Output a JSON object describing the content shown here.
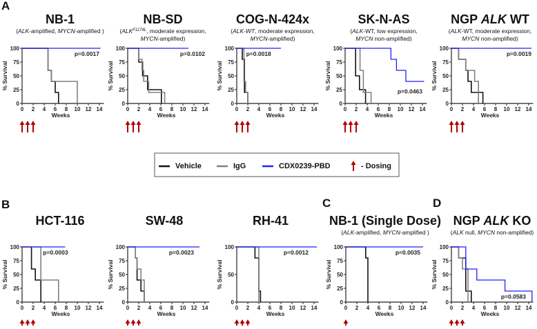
{
  "colors": {
    "vehicle": "#111111",
    "igg": "#808080",
    "cdx": "#1f1fff",
    "dosing": "#b00000"
  },
  "axis": {
    "y_label": "% Survival",
    "x_label": "Weeks"
  },
  "legend": {
    "items": [
      {
        "label": "Vehicle",
        "series": "vehicle"
      },
      {
        "label": "IgG",
        "series": "igg"
      },
      {
        "label": "CDX0239-PBD",
        "series": "cdx"
      },
      {
        "label": "- Dosing",
        "series": "dosing"
      }
    ]
  },
  "panel_letters": [
    "A",
    "B",
    "C",
    "D"
  ],
  "chart_data": [
    {
      "type": "line",
      "id": "nb1",
      "title": [
        {
          "t": "NB-1"
        }
      ],
      "subtitle": [
        [
          {
            "t": "("
          },
          {
            "t": "ALK",
            "i": true
          },
          {
            "t": "-amplified, "
          },
          {
            "t": "MYCN",
            "i": true
          },
          {
            "t": "-amplified )"
          }
        ]
      ],
      "p_value": "p=0.0017",
      "xlim": [
        0,
        14
      ],
      "ylim": [
        0,
        100
      ],
      "xticks": [
        0,
        2,
        4,
        6,
        8,
        10,
        12,
        14
      ],
      "yticks": [
        0,
        25,
        50,
        75,
        100
      ],
      "dosing_weeks": [
        0,
        1,
        2
      ],
      "series": [
        {
          "name": "Vehicle",
          "points": [
            [
              0,
              100
            ],
            [
              4.7,
              60
            ],
            [
              5.3,
              40
            ],
            [
              6,
              20
            ],
            [
              6.6,
              0
            ],
            [
              6.6,
              0
            ]
          ]
        },
        {
          "name": "IgG",
          "points": [
            [
              0,
              100
            ],
            [
              4.7,
              60
            ],
            [
              5.3,
              40
            ],
            [
              10,
              0
            ],
            [
              10,
              0
            ]
          ]
        },
        {
          "name": "CDX0239-PBD",
          "points": [
            [
              0,
              100
            ],
            [
              14.2,
              100
            ]
          ]
        }
      ]
    },
    {
      "type": "line",
      "id": "nbsd",
      "title": [
        {
          "t": "NB-SD"
        }
      ],
      "subtitle": [
        [
          {
            "t": "("
          },
          {
            "t": "ALK",
            "i": true
          },
          {
            "t": "F1174L",
            "i": true,
            "sup": true
          },
          {
            "t": ", moderate expression,"
          }
        ],
        [
          {
            "t": "MYCN",
            "i": true
          },
          {
            "t": "-amplified)"
          }
        ]
      ],
      "p_value": "p=0.0102",
      "xlim": [
        0,
        14
      ],
      "ylim": [
        0,
        100
      ],
      "xticks": [
        0,
        2,
        4,
        6,
        8,
        10,
        12,
        14
      ],
      "yticks": [
        0,
        25,
        50,
        75,
        100
      ],
      "dosing_weeks": [
        0,
        1,
        2
      ],
      "series": [
        {
          "name": "Vehicle",
          "points": [
            [
              0,
              100
            ],
            [
              2,
              75
            ],
            [
              2.7,
              50
            ],
            [
              3.6,
              25
            ],
            [
              6.1,
              0
            ],
            [
              6.1,
              0
            ]
          ]
        },
        {
          "name": "IgG",
          "points": [
            [
              0,
              100
            ],
            [
              2,
              80
            ],
            [
              2.6,
              60
            ],
            [
              2.9,
              40
            ],
            [
              3.8,
              20
            ],
            [
              6.7,
              0
            ],
            [
              6.7,
              0
            ]
          ]
        },
        {
          "name": "CDX0239-PBD",
          "points": [
            [
              0,
              100
            ],
            [
              11,
              100
            ]
          ]
        }
      ]
    },
    {
      "type": "line",
      "id": "cog",
      "title": [
        {
          "t": "COG-N-424x"
        }
      ],
      "subtitle": [
        [
          {
            "t": "("
          },
          {
            "t": "ALK",
            "i": true
          },
          {
            "t": "-WT",
            "i": true
          },
          {
            "t": ", moderate expression,"
          }
        ],
        [
          {
            "t": "MYCN",
            "i": true
          },
          {
            "t": "-amplified)"
          }
        ]
      ],
      "p_value": "p=0.0018",
      "xlim": [
        0,
        14
      ],
      "ylim": [
        0,
        100
      ],
      "xticks": [
        0,
        2,
        4,
        6,
        8,
        10,
        12,
        14
      ],
      "yticks": [
        0,
        25,
        50,
        75,
        100
      ],
      "dosing_weeks": [
        0,
        1,
        2
      ],
      "series": [
        {
          "name": "Vehicle",
          "points": [
            [
              0,
              100
            ],
            [
              1,
              80
            ],
            [
              1.4,
              20
            ],
            [
              2,
              0
            ],
            [
              2,
              0
            ]
          ]
        },
        {
          "name": "IgG",
          "points": [
            [
              0,
              100
            ],
            [
              1.3,
              40
            ],
            [
              1.6,
              20
            ],
            [
              2,
              0
            ],
            [
              2,
              0
            ]
          ]
        },
        {
          "name": "CDX0239-PBD",
          "points": [
            [
              0,
              100
            ],
            [
              8,
              100
            ]
          ]
        }
      ]
    },
    {
      "type": "line",
      "id": "sknas",
      "title": [
        {
          "t": "SK-N-AS"
        }
      ],
      "subtitle": [
        [
          {
            "t": "("
          },
          {
            "t": "ALK",
            "i": true
          },
          {
            "t": "-WT, low expression,"
          }
        ],
        [
          {
            "t": "MYCN",
            "i": true
          },
          {
            "t": " non-amplified)"
          }
        ]
      ],
      "p_value": "p=0.0463",
      "xlim": [
        0,
        14
      ],
      "ylim": [
        0,
        100
      ],
      "xticks": [
        0,
        2,
        4,
        6,
        8,
        10,
        12,
        14
      ],
      "yticks": [
        0,
        25,
        50,
        75,
        100
      ],
      "dosing_weeks": [
        0,
        1,
        2
      ],
      "series": [
        {
          "name": "Vehicle",
          "points": [
            [
              0,
              100
            ],
            [
              1.9,
              50
            ],
            [
              2.6,
              25
            ],
            [
              3.7,
              0
            ],
            [
              3.7,
              0
            ]
          ]
        },
        {
          "name": "IgG",
          "points": [
            [
              0,
              100
            ],
            [
              2.7,
              60
            ],
            [
              3.3,
              20
            ],
            [
              4.7,
              0
            ],
            [
              4.7,
              0
            ]
          ]
        },
        {
          "name": "CDX0239-PBD",
          "points": [
            [
              0,
              100
            ],
            [
              8.3,
              80
            ],
            [
              9.3,
              60
            ],
            [
              11,
              40
            ],
            [
              14.3,
              40
            ]
          ]
        }
      ]
    },
    {
      "type": "line",
      "id": "ngpwt",
      "title": [
        {
          "t": "NGP "
        },
        {
          "t": "ALK",
          "i": true
        },
        {
          "t": " WT"
        }
      ],
      "subtitle": [
        [
          {
            "t": "("
          },
          {
            "t": "ALK",
            "i": true
          },
          {
            "t": "-WT, moderate expression,"
          }
        ],
        [
          {
            "t": "MYCN",
            "i": true
          },
          {
            "t": " non-amplified)"
          }
        ]
      ],
      "p_value": "p=0.0019",
      "xlim": [
        0,
        14
      ],
      "ylim": [
        0,
        100
      ],
      "xticks": [
        0,
        2,
        4,
        6,
        8,
        10,
        12,
        14
      ],
      "yticks": [
        0,
        25,
        50,
        75,
        100
      ],
      "dosing_weeks": [
        0,
        1,
        2
      ],
      "series": [
        {
          "name": "Vehicle",
          "points": [
            [
              0,
              100
            ],
            [
              1.3,
              80
            ],
            [
              2.6,
              60
            ],
            [
              3,
              40
            ],
            [
              3.6,
              20
            ],
            [
              5.7,
              0
            ],
            [
              5.7,
              0
            ]
          ]
        },
        {
          "name": "IgG",
          "points": [
            [
              0,
              100
            ],
            [
              1.3,
              80
            ],
            [
              2.6,
              60
            ],
            [
              4.2,
              40
            ],
            [
              4.9,
              0
            ],
            [
              4.9,
              0
            ]
          ]
        },
        {
          "name": "CDX0239-PBD",
          "points": [
            [
              0,
              100
            ],
            [
              14.5,
              100
            ]
          ]
        }
      ]
    },
    {
      "type": "line",
      "id": "hct116",
      "title": [
        {
          "t": "HCT-116"
        }
      ],
      "subtitle": [],
      "p_value": "p=0.0003",
      "xlim": [
        0,
        14
      ],
      "ylim": [
        0,
        100
      ],
      "xticks": [
        0,
        2,
        4,
        6,
        8,
        10,
        12,
        14
      ],
      "yticks": [
        0,
        25,
        50,
        75,
        100
      ],
      "dosing_weeks": [
        0,
        1,
        2
      ],
      "series": [
        {
          "name": "Vehicle",
          "points": [
            [
              0,
              100
            ],
            [
              1.7,
              60
            ],
            [
              2.4,
              40
            ],
            [
              3.4,
              0
            ],
            [
              3.4,
              0
            ]
          ]
        },
        {
          "name": "IgG",
          "points": [
            [
              0,
              100
            ],
            [
              3.4,
              40
            ],
            [
              6.6,
              0
            ],
            [
              6.6,
              0
            ]
          ]
        },
        {
          "name": "CDX0239-PBD",
          "points": [
            [
              0,
              100
            ],
            [
              7.8,
              100
            ]
          ]
        }
      ]
    },
    {
      "type": "line",
      "id": "sw48",
      "title": [
        {
          "t": "SW-48"
        }
      ],
      "subtitle": [],
      "p_value": "p=0.0023",
      "xlim": [
        0,
        14
      ],
      "ylim": [
        0,
        100
      ],
      "xticks": [
        0,
        2,
        4,
        6,
        8,
        10,
        12,
        14
      ],
      "yticks": [
        0,
        25,
        50,
        75,
        100
      ],
      "dosing_weeks": [
        0,
        1,
        2
      ],
      "series": [
        {
          "name": "Vehicle",
          "points": [
            [
              0,
              100
            ],
            [
              1.4,
              80
            ],
            [
              1.7,
              40
            ],
            [
              2.4,
              20
            ],
            [
              3,
              0
            ],
            [
              3,
              0
            ]
          ]
        },
        {
          "name": "IgG",
          "points": [
            [
              0,
              100
            ],
            [
              1.4,
              80
            ],
            [
              1.7,
              60
            ],
            [
              2.4,
              40
            ],
            [
              3,
              0
            ],
            [
              3,
              0
            ]
          ]
        },
        {
          "name": "CDX0239-PBD",
          "points": [
            [
              0,
              100
            ],
            [
              13,
              100
            ]
          ]
        }
      ]
    },
    {
      "type": "line",
      "id": "rh41",
      "title": [
        {
          "t": "RH-41"
        }
      ],
      "subtitle": [],
      "p_value": "p=0.0012",
      "xlim": [
        0,
        14
      ],
      "ylim": [
        0,
        100
      ],
      "xticks": [
        0,
        2,
        4,
        6,
        8,
        10,
        12,
        14
      ],
      "yticks": [
        0,
        50,
        100
      ],
      "dosing_weeks": [
        0,
        1,
        2
      ],
      "series": [
        {
          "name": "Vehicle",
          "points": [
            [
              0,
              100
            ],
            [
              3.3,
              80
            ],
            [
              4,
              20
            ],
            [
              4.3,
              0
            ],
            [
              4.3,
              0
            ]
          ]
        },
        {
          "name": "IgG",
          "points": [
            [
              0,
              100
            ],
            [
              4,
              0
            ],
            [
              4,
              0
            ]
          ]
        },
        {
          "name": "CDX0239-PBD",
          "points": [
            [
              0,
              100
            ],
            [
              14.5,
              100
            ]
          ]
        }
      ]
    },
    {
      "type": "line",
      "id": "nb1single",
      "title": [
        {
          "t": "NB-1 (Single Dose)"
        }
      ],
      "subtitle": [
        [
          {
            "t": "("
          },
          {
            "t": "ALK",
            "i": true
          },
          {
            "t": "-amplified, "
          },
          {
            "t": "MYCN",
            "i": true
          },
          {
            "t": "-amplified )"
          }
        ]
      ],
      "p_value": "p=0.0035",
      "xlim": [
        0,
        14
      ],
      "ylim": [
        0,
        100
      ],
      "xticks": [
        0,
        2,
        4,
        6,
        8,
        10,
        12,
        14
      ],
      "yticks": [
        0,
        25,
        50,
        75,
        100
      ],
      "dosing_weeks": [
        0
      ],
      "series": [
        {
          "name": "Vehicle",
          "points": [
            [
              0,
              100
            ],
            [
              3.6,
              80
            ],
            [
              4,
              0
            ],
            [
              4,
              0
            ]
          ]
        },
        {
          "name": "CDX0239-PBD",
          "points": [
            [
              0,
              100
            ],
            [
              14,
              100
            ]
          ]
        }
      ]
    },
    {
      "type": "line",
      "id": "ngpko",
      "title": [
        {
          "t": "NGP "
        },
        {
          "t": "ALK",
          "i": true
        },
        {
          "t": " KO"
        }
      ],
      "subtitle": [
        [
          {
            "t": "("
          },
          {
            "t": "ALK",
            "i": true
          },
          {
            "t": " null, "
          },
          {
            "t": "MYCN",
            "i": true
          },
          {
            "t": " non-amplified)"
          }
        ]
      ],
      "p_value": "p=0.0583",
      "xlim": [
        0,
        14
      ],
      "ylim": [
        0,
        100
      ],
      "xticks": [
        0,
        2,
        4,
        6,
        8,
        10,
        12,
        14
      ],
      "yticks": [
        0,
        25,
        50,
        75,
        100
      ],
      "dosing_weeks": [
        0,
        1,
        2
      ],
      "series": [
        {
          "name": "Vehicle",
          "points": [
            [
              0,
              100
            ],
            [
              1.3,
              80
            ],
            [
              2.6,
              20
            ],
            [
              3.6,
              0
            ],
            [
              3.6,
              0
            ]
          ]
        },
        {
          "name": "IgG",
          "points": [
            [
              0,
              100
            ],
            [
              1.3,
              80
            ],
            [
              2,
              60
            ],
            [
              3,
              0
            ],
            [
              3,
              0
            ]
          ]
        },
        {
          "name": "CDX0239-PBD",
          "points": [
            [
              0,
              100
            ],
            [
              2.6,
              60
            ],
            [
              4.6,
              40
            ],
            [
              9.7,
              20
            ],
            [
              14.6,
              0
            ]
          ]
        }
      ]
    }
  ]
}
